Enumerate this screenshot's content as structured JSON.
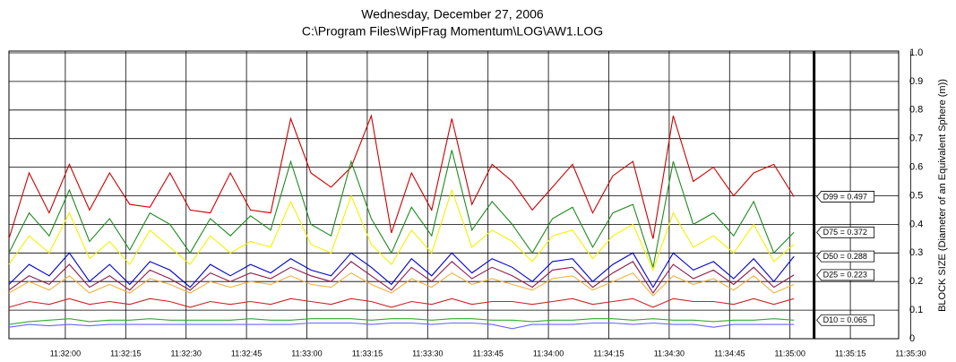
{
  "chart_data": {
    "type": "line",
    "title": "Wednesday, December 27, 2006",
    "subtitle": "C:\\Program Files\\WipFrag Momentum\\LOG\\AW1.LOG",
    "y_label": "BLOCK SIZE (Diameter of an Equivalent Sphere (m))",
    "xlim": [
      41506,
      41727
    ],
    "ylim": [
      0,
      1
    ],
    "grid": true,
    "cursor_x": 41706,
    "xticks": [
      {
        "value": 41520,
        "label": "11:32:00"
      },
      {
        "value": 41535,
        "label": "11:32:15"
      },
      {
        "value": 41550,
        "label": "11:32:30"
      },
      {
        "value": 41565,
        "label": "11:32:45"
      },
      {
        "value": 41580,
        "label": "11:33:00"
      },
      {
        "value": 41595,
        "label": "11:33:15"
      },
      {
        "value": 41610,
        "label": "11:33:30"
      },
      {
        "value": 41625,
        "label": "11:33:45"
      },
      {
        "value": 41640,
        "label": "11:34:00"
      },
      {
        "value": 41655,
        "label": "11:34:15"
      },
      {
        "value": 41670,
        "label": "11:34:30"
      },
      {
        "value": 41685,
        "label": "11:34:45"
      },
      {
        "value": 41700,
        "label": "11:35:00"
      },
      {
        "value": 41715,
        "label": "11:35:15"
      },
      {
        "value": 41730,
        "label": "11:35:30"
      }
    ],
    "yticks": [
      0,
      0.1,
      0.2,
      0.3,
      0.4,
      0.5,
      0.6,
      0.7,
      0.8,
      0.9,
      {
        "value": 1,
        "label": "1.0"
      }
    ],
    "x": [
      41506,
      41511,
      41516,
      41521,
      41526,
      41531,
      41536,
      41541,
      41546,
      41551,
      41556,
      41561,
      41566,
      41571,
      41576,
      41581,
      41586,
      41591,
      41596,
      41601,
      41606,
      41611,
      41616,
      41621,
      41626,
      41631,
      41636,
      41641,
      41646,
      41651,
      41656,
      41661,
      41666,
      41671,
      41676,
      41681,
      41686,
      41691,
      41696,
      41701
    ],
    "series": [
      {
        "color": "#cc0000",
        "label": "D99 = 0.497",
        "label_value": 0.497,
        "values": [
          0.35,
          0.58,
          0.44,
          0.61,
          0.45,
          0.58,
          0.47,
          0.46,
          0.58,
          0.45,
          0.44,
          0.58,
          0.45,
          0.44,
          0.77,
          0.58,
          0.53,
          0.6,
          0.78,
          0.37,
          0.58,
          0.45,
          0.77,
          0.47,
          0.61,
          0.55,
          0.45,
          0.53,
          0.61,
          0.44,
          0.57,
          0.62,
          0.35,
          0.78,
          0.55,
          0.6,
          0.5,
          0.58,
          0.61,
          0.497
        ]
      },
      {
        "color": "#1f8a1f",
        "label": "D75 = 0.372",
        "label_value": 0.372,
        "values": [
          0.3,
          0.44,
          0.36,
          0.52,
          0.34,
          0.42,
          0.31,
          0.44,
          0.4,
          0.3,
          0.42,
          0.36,
          0.43,
          0.38,
          0.62,
          0.4,
          0.36,
          0.62,
          0.42,
          0.3,
          0.46,
          0.36,
          0.66,
          0.38,
          0.48,
          0.4,
          0.3,
          0.42,
          0.46,
          0.32,
          0.44,
          0.47,
          0.25,
          0.62,
          0.4,
          0.44,
          0.36,
          0.48,
          0.3,
          0.372
        ]
      },
      {
        "color": "#f2f200",
        "values": [
          0.26,
          0.36,
          0.3,
          0.44,
          0.28,
          0.34,
          0.26,
          0.38,
          0.32,
          0.26,
          0.36,
          0.3,
          0.34,
          0.32,
          0.48,
          0.33,
          0.3,
          0.5,
          0.33,
          0.26,
          0.38,
          0.3,
          0.52,
          0.32,
          0.38,
          0.34,
          0.27,
          0.36,
          0.38,
          0.28,
          0.36,
          0.4,
          0.24,
          0.44,
          0.32,
          0.36,
          0.3,
          0.4,
          0.27,
          0.33
        ]
      },
      {
        "color": "#0000cc",
        "label": "D50 = 0.288",
        "label_value": 0.288,
        "values": [
          0.19,
          0.26,
          0.22,
          0.3,
          0.2,
          0.26,
          0.19,
          0.27,
          0.24,
          0.18,
          0.26,
          0.22,
          0.26,
          0.23,
          0.28,
          0.24,
          0.22,
          0.3,
          0.25,
          0.19,
          0.28,
          0.22,
          0.3,
          0.23,
          0.28,
          0.25,
          0.2,
          0.27,
          0.28,
          0.2,
          0.26,
          0.3,
          0.18,
          0.3,
          0.24,
          0.27,
          0.21,
          0.28,
          0.2,
          0.288
        ]
      },
      {
        "color": "#8b1a4a",
        "label": "D25 = 0.223",
        "label_value": 0.223,
        "values": [
          0.17,
          0.22,
          0.19,
          0.26,
          0.18,
          0.22,
          0.17,
          0.24,
          0.21,
          0.17,
          0.23,
          0.2,
          0.23,
          0.21,
          0.25,
          0.22,
          0.2,
          0.27,
          0.22,
          0.17,
          0.25,
          0.2,
          0.27,
          0.21,
          0.25,
          0.22,
          0.18,
          0.24,
          0.25,
          0.18,
          0.23,
          0.27,
          0.16,
          0.26,
          0.21,
          0.24,
          0.19,
          0.25,
          0.18,
          0.223
        ]
      },
      {
        "color": "#f0b040",
        "values": [
          0.16,
          0.2,
          0.17,
          0.22,
          0.16,
          0.19,
          0.16,
          0.21,
          0.19,
          0.16,
          0.2,
          0.18,
          0.2,
          0.19,
          0.22,
          0.19,
          0.18,
          0.23,
          0.19,
          0.16,
          0.21,
          0.18,
          0.23,
          0.19,
          0.21,
          0.19,
          0.17,
          0.21,
          0.22,
          0.17,
          0.2,
          0.23,
          0.15,
          0.22,
          0.19,
          0.21,
          0.17,
          0.22,
          0.16,
          0.19
        ]
      },
      {
        "color": "#cc2222",
        "values": [
          0.11,
          0.13,
          0.12,
          0.14,
          0.12,
          0.13,
          0.12,
          0.14,
          0.13,
          0.11,
          0.13,
          0.12,
          0.13,
          0.12,
          0.14,
          0.13,
          0.12,
          0.14,
          0.13,
          0.11,
          0.13,
          0.12,
          0.14,
          0.12,
          0.13,
          0.13,
          0.12,
          0.13,
          0.14,
          0.12,
          0.13,
          0.14,
          0.11,
          0.14,
          0.13,
          0.13,
          0.12,
          0.14,
          0.12,
          0.14
        ]
      },
      {
        "color": "#33aa33",
        "label": "D10 = 0.065",
        "label_value": 0.065,
        "values": [
          0.05,
          0.06,
          0.065,
          0.07,
          0.06,
          0.065,
          0.065,
          0.07,
          0.065,
          0.065,
          0.065,
          0.065,
          0.07,
          0.065,
          0.065,
          0.07,
          0.07,
          0.07,
          0.065,
          0.07,
          0.07,
          0.065,
          0.07,
          0.07,
          0.065,
          0.065,
          0.06,
          0.065,
          0.065,
          0.07,
          0.07,
          0.065,
          0.07,
          0.065,
          0.065,
          0.06,
          0.065,
          0.065,
          0.07,
          0.065
        ]
      },
      {
        "color": "#6666ff",
        "values": [
          0.04,
          0.05,
          0.045,
          0.05,
          0.045,
          0.05,
          0.05,
          0.05,
          0.05,
          0.05,
          0.05,
          0.05,
          0.05,
          0.05,
          0.05,
          0.055,
          0.055,
          0.055,
          0.05,
          0.055,
          0.055,
          0.05,
          0.055,
          0.055,
          0.05,
          0.035,
          0.05,
          0.05,
          0.05,
          0.055,
          0.055,
          0.05,
          0.055,
          0.05,
          0.05,
          0.04,
          0.05,
          0.05,
          0.05,
          0.05
        ]
      }
    ]
  }
}
